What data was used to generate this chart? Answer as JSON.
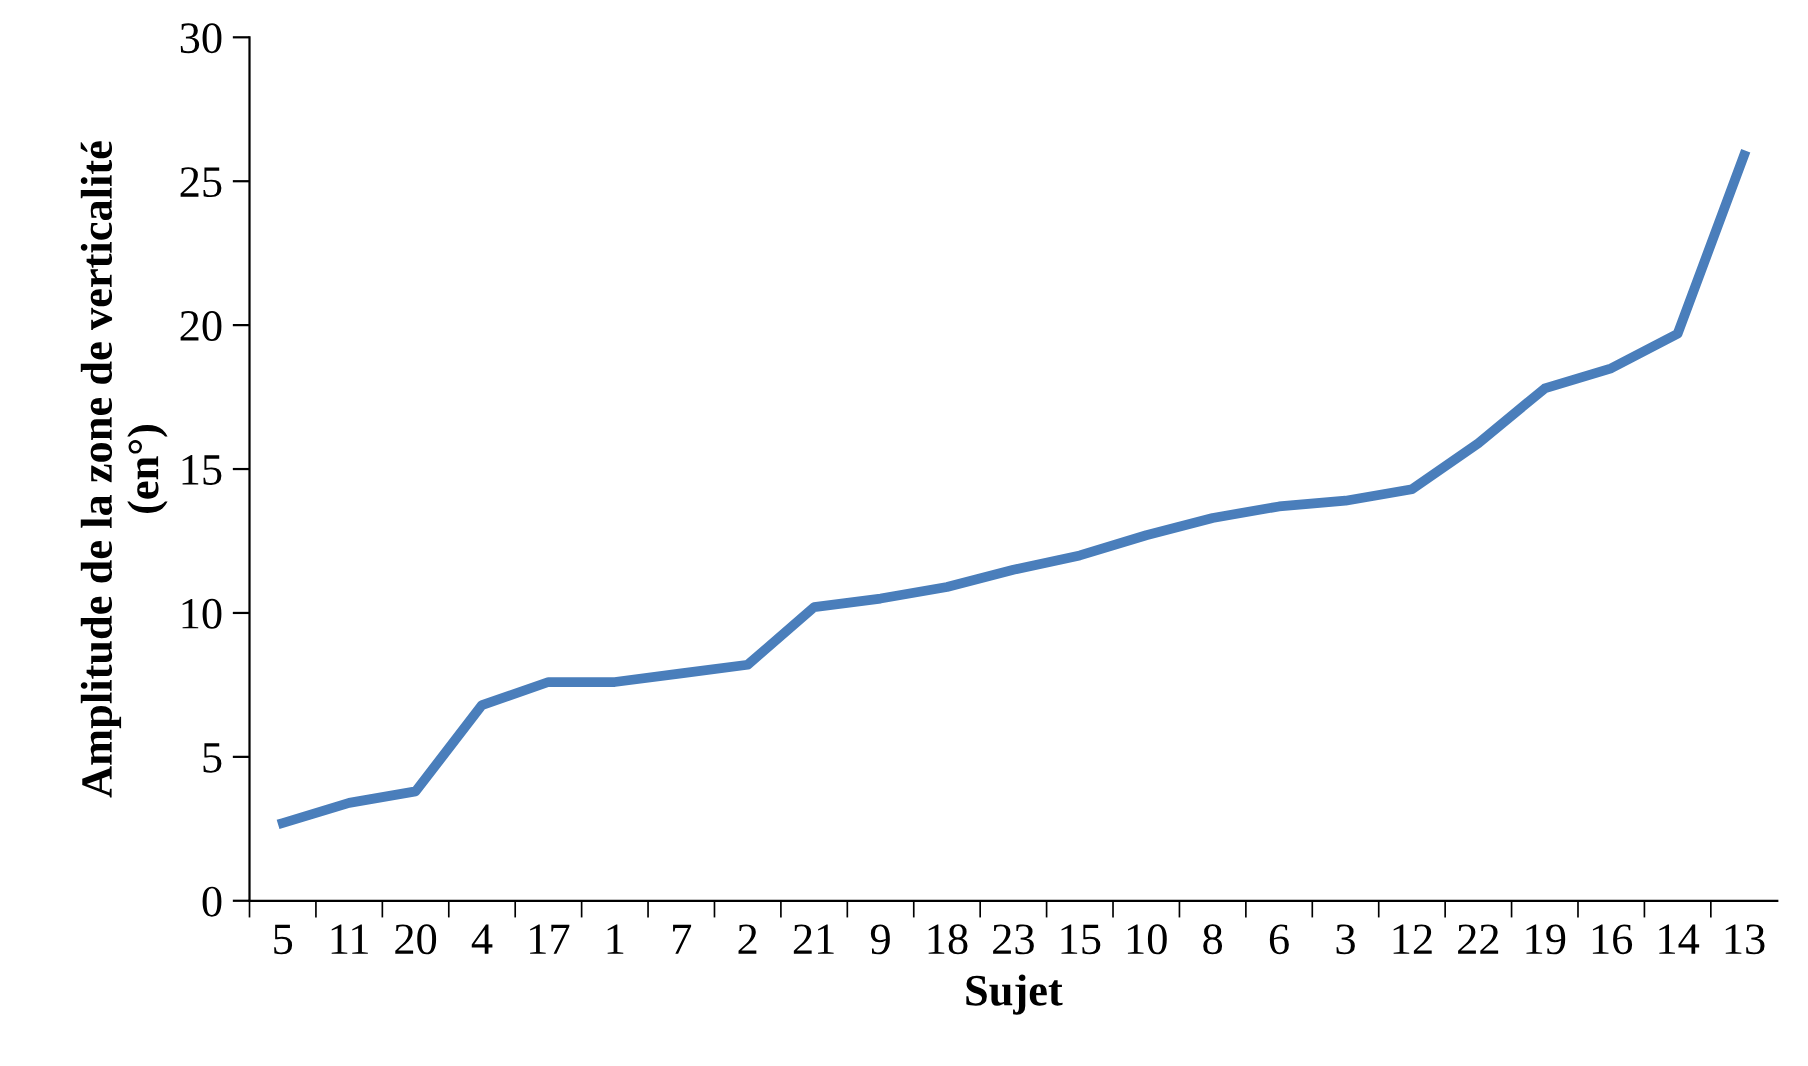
{
  "chart_data": {
    "type": "line",
    "xlabel": "Sujet",
    "ylabel": "Amplitude de la zone de verticalité\n(en°)",
    "categories": [
      "5",
      "11",
      "20",
      "4",
      "17",
      "1",
      "7",
      "2",
      "21",
      "9",
      "18",
      "23",
      "15",
      "10",
      "8",
      "6",
      "3",
      "12",
      "22",
      "19",
      "16",
      "14",
      "13"
    ],
    "series": [
      {
        "color": "#4a7ebb",
        "values": [
          2.7,
          3.4,
          3.8,
          6.8,
          7.6,
          7.6,
          7.9,
          8.2,
          10.2,
          10.5,
          10.9,
          11.5,
          12.0,
          12.7,
          13.3,
          13.7,
          13.9,
          14.3,
          15.9,
          17.8,
          18.5,
          19.7,
          25.9
        ]
      }
    ],
    "ylim": [
      0,
      30
    ],
    "yticks": [
      0,
      5,
      10,
      15,
      20,
      25,
      30
    ],
    "grid": false,
    "marker": "none",
    "line_style": "solid"
  }
}
